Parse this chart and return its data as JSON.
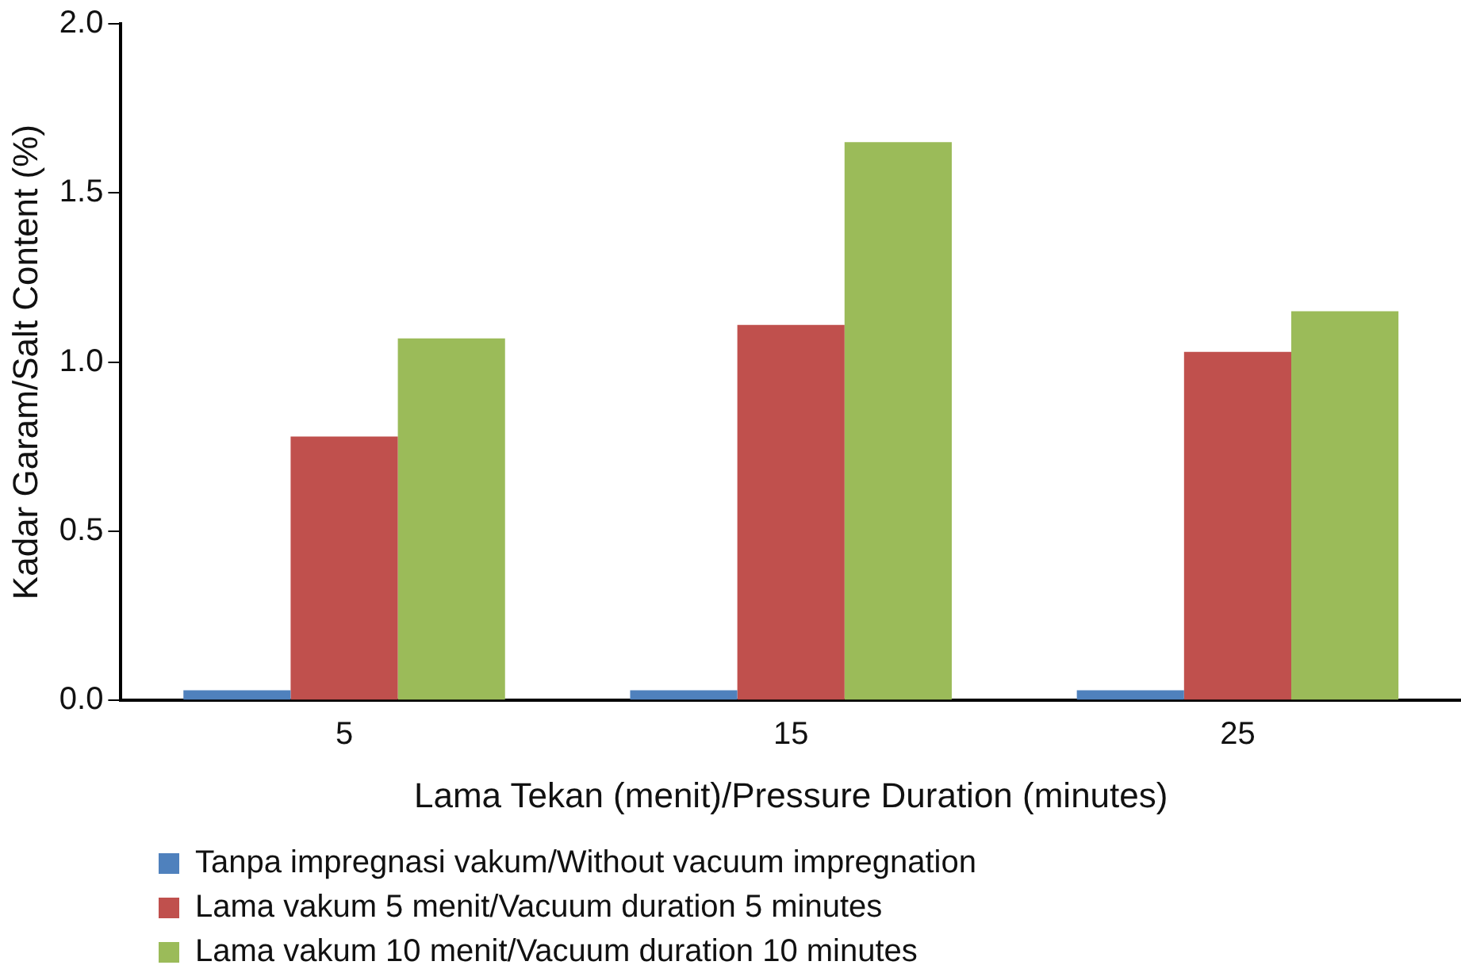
{
  "chart_data": {
    "type": "bar",
    "xlabel": "Lama Tekan (menit)/Pressure Duration (minutes)",
    "ylabel": "Kadar Garam/Salt Content (%)",
    "categories": [
      "5",
      "15",
      "25"
    ],
    "series": [
      {
        "name": "Tanpa impregnasi vakum/Without vacuum impregnation",
        "color": "#4f81bd",
        "values": [
          0.03,
          0.03,
          0.03
        ]
      },
      {
        "name": "Lama vakum 5 menit/Vacuum duration 5 minutes",
        "color": "#c0504d",
        "values": [
          0.78,
          1.11,
          1.03
        ]
      },
      {
        "name": "Lama vakum 10 menit/Vacuum duration 10 minutes",
        "color": "#9bbb59",
        "values": [
          1.07,
          1.65,
          1.15
        ]
      }
    ],
    "ylim": [
      0,
      2
    ],
    "yticks": [
      {
        "value": 0,
        "label": "0.0"
      },
      {
        "value": 0.5,
        "label": "0.5"
      },
      {
        "value": 1,
        "label": "1.0"
      },
      {
        "value": 1.5,
        "label": "1.5"
      },
      {
        "value": 2,
        "label": "2.0"
      }
    ],
    "grid": false,
    "legend": "bottom"
  }
}
